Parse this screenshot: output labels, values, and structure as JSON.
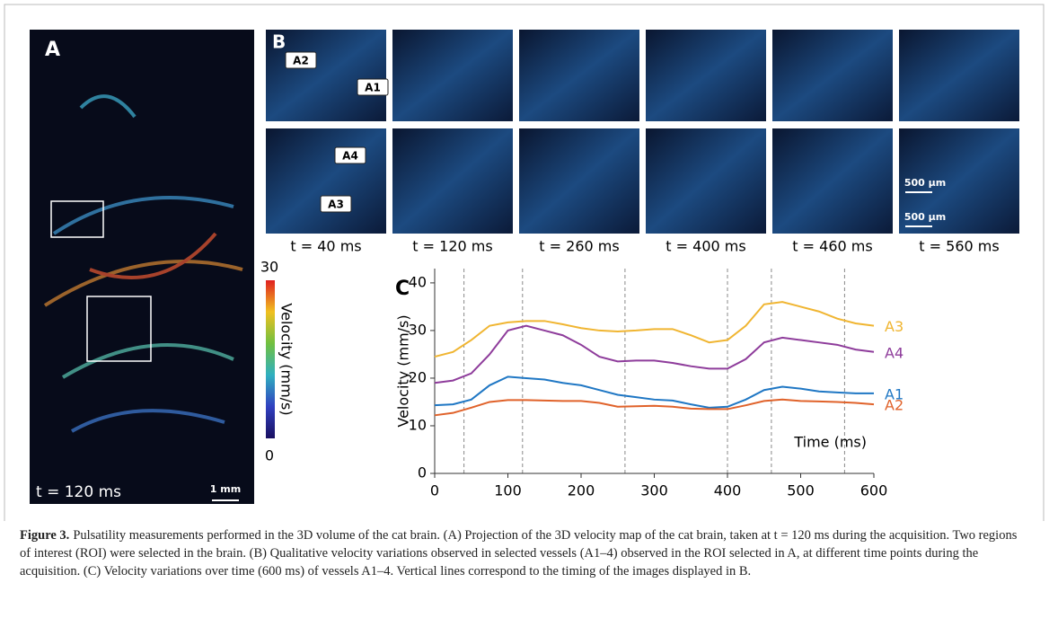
{
  "panel_a": {
    "label": "A",
    "time": "t = 120 ms",
    "scale_bar": "1 mm"
  },
  "colorbar": {
    "label": "Velocity (mm/s)",
    "min": 0,
    "max": 30
  },
  "panel_b": {
    "label": "B",
    "vessels": [
      "A1",
      "A2",
      "A3",
      "A4"
    ],
    "scale_bar": "500 µm",
    "times": [
      "t = 40 ms",
      "t = 120 ms",
      "t = 260 ms",
      "t = 400 ms",
      "t = 460 ms",
      "t = 560 ms"
    ]
  },
  "chart_data": {
    "type": "line",
    "label": "C",
    "x_label": "Time (ms)",
    "y_label": "Velocity (mm/s)",
    "x": [
      0,
      25,
      50,
      75,
      100,
      125,
      150,
      175,
      200,
      225,
      250,
      275,
      300,
      325,
      350,
      375,
      400,
      425,
      450,
      475,
      500,
      525,
      550,
      575,
      600
    ],
    "series": [
      {
        "name": "A3",
        "color": "#f0b531",
        "values": [
          24.5,
          25.5,
          28,
          31,
          31.7,
          32,
          32,
          31.3,
          30.5,
          30,
          29.8,
          30,
          30.3,
          30.3,
          29,
          27.5,
          28,
          31,
          35.5,
          36,
          35,
          34,
          32.5,
          31.5,
          31
        ]
      },
      {
        "name": "A4",
        "color": "#8e3c9b",
        "values": [
          19,
          19.5,
          21,
          25,
          30,
          31,
          30,
          29,
          27,
          24.5,
          23.5,
          23.7,
          23.7,
          23.2,
          22.5,
          22,
          22,
          24,
          27.5,
          28.5,
          28,
          27.5,
          27,
          26,
          25.5
        ]
      },
      {
        "name": "A1",
        "color": "#1f77c4",
        "values": [
          14.3,
          14.5,
          15.5,
          18.5,
          20.3,
          20,
          19.7,
          19,
          18.5,
          17.5,
          16.5,
          16,
          15.5,
          15.3,
          14.5,
          13.8,
          14,
          15.5,
          17.5,
          18.2,
          17.8,
          17.2,
          17,
          16.8,
          16.8
        ]
      },
      {
        "name": "A2",
        "color": "#e0622a",
        "values": [
          12.2,
          12.7,
          13.8,
          15,
          15.4,
          15.4,
          15.3,
          15.2,
          15.2,
          14.8,
          14,
          14.1,
          14.2,
          14,
          13.6,
          13.5,
          13.5,
          14.3,
          15.2,
          15.5,
          15.2,
          15.1,
          15,
          14.8,
          14.5
        ]
      }
    ],
    "xlim": [
      0,
      600
    ],
    "ylim": [
      0,
      43
    ],
    "xticks": [
      0,
      100,
      200,
      300,
      400,
      500,
      600
    ],
    "yticks": [
      0,
      10,
      20,
      30,
      40
    ],
    "vlines": [
      40,
      120,
      260,
      400,
      460,
      560
    ]
  },
  "caption": {
    "label": "Figure 3.",
    "text": "Pulsatility measurements performed in the 3D volume of the cat brain. (A) Projection of the 3D velocity map of the cat brain, taken at t = 120 ms during the acquisition. Two regions of interest (ROI) were selected in the brain. (B) Qualitative velocity variations observed in selected vessels (A1–4) observed in the ROI selected in A, at different time points during the acquisition. (C) Velocity variations over time (600 ms) of vessels A1–4. Vertical lines correspond to the timing of the images displayed in B."
  }
}
